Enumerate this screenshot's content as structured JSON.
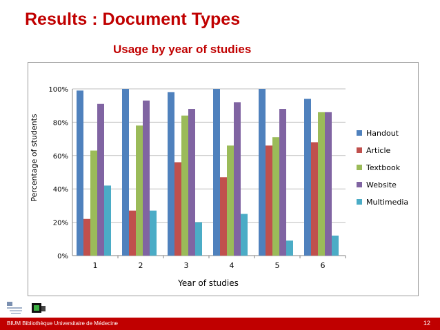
{
  "slide": {
    "title": "Results : Document Types",
    "subtitle": "Usage by year of studies",
    "footer_text": "BIUM Bibliothèque Universitaire de Médecine",
    "page_number": "12"
  },
  "colors": {
    "title": "#c00000",
    "footer_bar": "#c00000"
  },
  "chart_data": {
    "type": "bar",
    "title": "",
    "xlabel": "Year of studies",
    "ylabel": "Percentage of students",
    "ylim": [
      0,
      100
    ],
    "y_ticks": [
      "0%",
      "20%",
      "40%",
      "60%",
      "80%",
      "100%"
    ],
    "grid": true,
    "legend_position": "right",
    "categories": [
      "1",
      "2",
      "3",
      "4",
      "5",
      "6"
    ],
    "series": [
      {
        "name": "Handout",
        "color": "#4f81bd",
        "values": [
          99,
          100,
          98,
          100,
          100,
          94
        ]
      },
      {
        "name": "Article",
        "color": "#c0504d",
        "values": [
          22,
          27,
          56,
          47,
          66,
          68
        ]
      },
      {
        "name": "Textbook",
        "color": "#9bbb59",
        "values": [
          63,
          78,
          84,
          66,
          71,
          86
        ]
      },
      {
        "name": "Website",
        "color": "#8064a2",
        "values": [
          91,
          93,
          88,
          92,
          88,
          86
        ]
      },
      {
        "name": "Multimedia",
        "color": "#4bacc6",
        "values": [
          42,
          27,
          20,
          25,
          9,
          12
        ]
      }
    ]
  }
}
